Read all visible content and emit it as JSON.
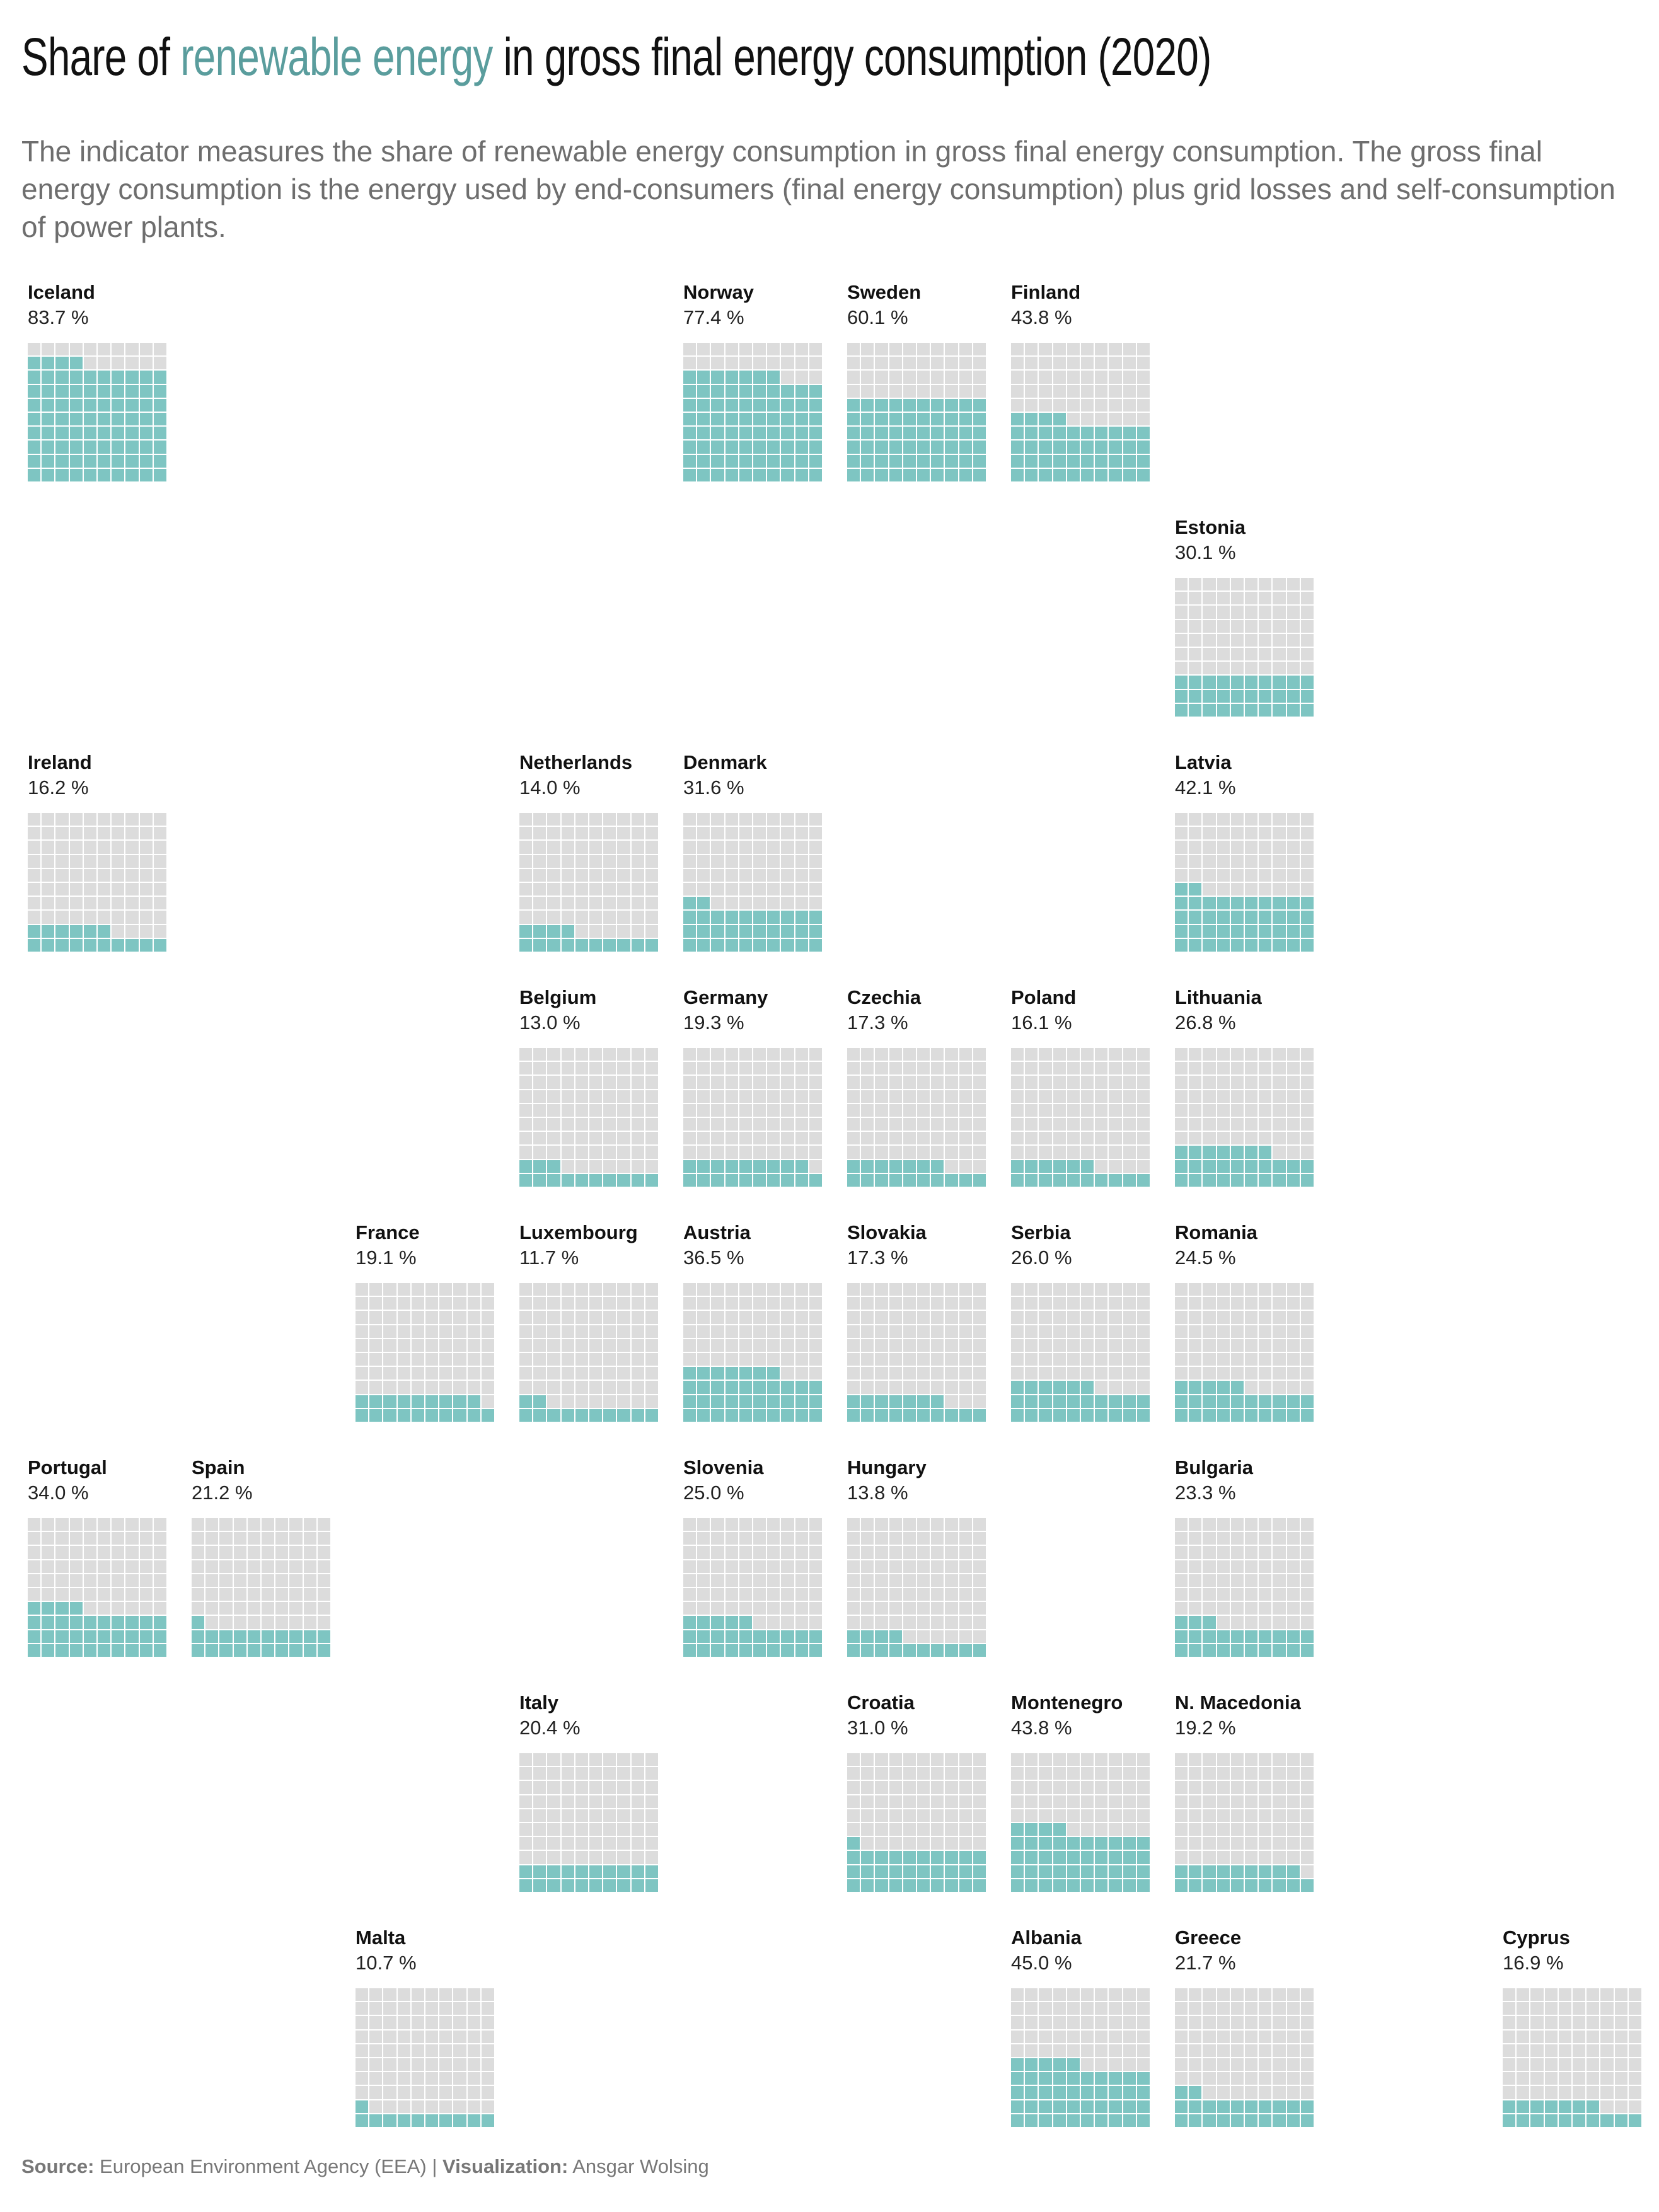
{
  "title": {
    "prefix": "Share of ",
    "highlight": "renewable energy",
    "suffix": " in gross final energy consumption (2020)"
  },
  "subtitle": "The indicator measures the share of renewable energy consumption in gross final energy consumption. The gross final energy consumption is the energy used by end-consumers (final energy consumption) plus grid losses and self-consumption of power plants.",
  "footer": {
    "source_label": "Source:",
    "source": "European Environment Agency (EEA)",
    "separator": "|",
    "viz_label": "Visualization:",
    "viz": "Ansgar Wolsing"
  },
  "colors": {
    "filled": "#7ec5c2",
    "empty": "#dcdcdc",
    "accent": "#5a9d9d"
  },
  "chart_data": {
    "type": "waffle",
    "unit": "%",
    "grid": "10x10",
    "countries": [
      {
        "name": "Iceland",
        "value": 83.7,
        "label": "83.7 %",
        "row": 0,
        "col": 0
      },
      {
        "name": "Norway",
        "value": 77.4,
        "label": "77.4 %",
        "row": 0,
        "col": 4
      },
      {
        "name": "Sweden",
        "value": 60.1,
        "label": "60.1 %",
        "row": 0,
        "col": 5
      },
      {
        "name": "Finland",
        "value": 43.8,
        "label": "43.8 %",
        "row": 0,
        "col": 6
      },
      {
        "name": "Estonia",
        "value": 30.1,
        "label": "30.1 %",
        "row": 1,
        "col": 7
      },
      {
        "name": "Ireland",
        "value": 16.2,
        "label": "16.2 %",
        "row": 2,
        "col": 0
      },
      {
        "name": "Netherlands",
        "value": 14.0,
        "label": "14.0 %",
        "row": 2,
        "col": 3
      },
      {
        "name": "Denmark",
        "value": 31.6,
        "label": "31.6 %",
        "row": 2,
        "col": 4
      },
      {
        "name": "Latvia",
        "value": 42.1,
        "label": "42.1 %",
        "row": 2,
        "col": 7
      },
      {
        "name": "Belgium",
        "value": 13.0,
        "label": "13.0 %",
        "row": 3,
        "col": 3
      },
      {
        "name": "Germany",
        "value": 19.3,
        "label": "19.3 %",
        "row": 3,
        "col": 4
      },
      {
        "name": "Czechia",
        "value": 17.3,
        "label": "17.3 %",
        "row": 3,
        "col": 5
      },
      {
        "name": "Poland",
        "value": 16.1,
        "label": "16.1 %",
        "row": 3,
        "col": 6
      },
      {
        "name": "Lithuania",
        "value": 26.8,
        "label": "26.8 %",
        "row": 3,
        "col": 7
      },
      {
        "name": "France",
        "value": 19.1,
        "label": "19.1 %",
        "row": 4,
        "col": 2
      },
      {
        "name": "Luxembourg",
        "value": 11.7,
        "label": "11.7 %",
        "row": 4,
        "col": 3
      },
      {
        "name": "Austria",
        "value": 36.5,
        "label": "36.5 %",
        "row": 4,
        "col": 4
      },
      {
        "name": "Slovakia",
        "value": 17.3,
        "label": "17.3 %",
        "row": 4,
        "col": 5
      },
      {
        "name": "Serbia",
        "value": 26.0,
        "label": "26.0 %",
        "row": 4,
        "col": 6
      },
      {
        "name": "Romania",
        "value": 24.5,
        "label": "24.5 %",
        "row": 4,
        "col": 7
      },
      {
        "name": "Portugal",
        "value": 34.0,
        "label": "34.0 %",
        "row": 5,
        "col": 0
      },
      {
        "name": "Spain",
        "value": 21.2,
        "label": "21.2 %",
        "row": 5,
        "col": 1
      },
      {
        "name": "Slovenia",
        "value": 25.0,
        "label": "25.0 %",
        "row": 5,
        "col": 4
      },
      {
        "name": "Hungary",
        "value": 13.8,
        "label": "13.8 %",
        "row": 5,
        "col": 5
      },
      {
        "name": "Bulgaria",
        "value": 23.3,
        "label": "23.3 %",
        "row": 5,
        "col": 7
      },
      {
        "name": "Italy",
        "value": 20.4,
        "label": "20.4 %",
        "row": 6,
        "col": 3
      },
      {
        "name": "Croatia",
        "value": 31.0,
        "label": "31.0 %",
        "row": 6,
        "col": 5
      },
      {
        "name": "Montenegro",
        "value": 43.8,
        "label": "43.8 %",
        "row": 6,
        "col": 6
      },
      {
        "name": "N. Macedonia",
        "value": 19.2,
        "label": "19.2 %",
        "row": 6,
        "col": 7
      },
      {
        "name": "Malta",
        "value": 10.7,
        "label": "10.7 %",
        "row": 7,
        "col": 2
      },
      {
        "name": "Albania",
        "value": 45.0,
        "label": "45.0 %",
        "row": 7,
        "col": 6
      },
      {
        "name": "Greece",
        "value": 21.7,
        "label": "21.7 %",
        "row": 7,
        "col": 7
      },
      {
        "name": "Cyprus",
        "value": 16.9,
        "label": "16.9 %",
        "row": 7,
        "col": 9
      }
    ]
  }
}
